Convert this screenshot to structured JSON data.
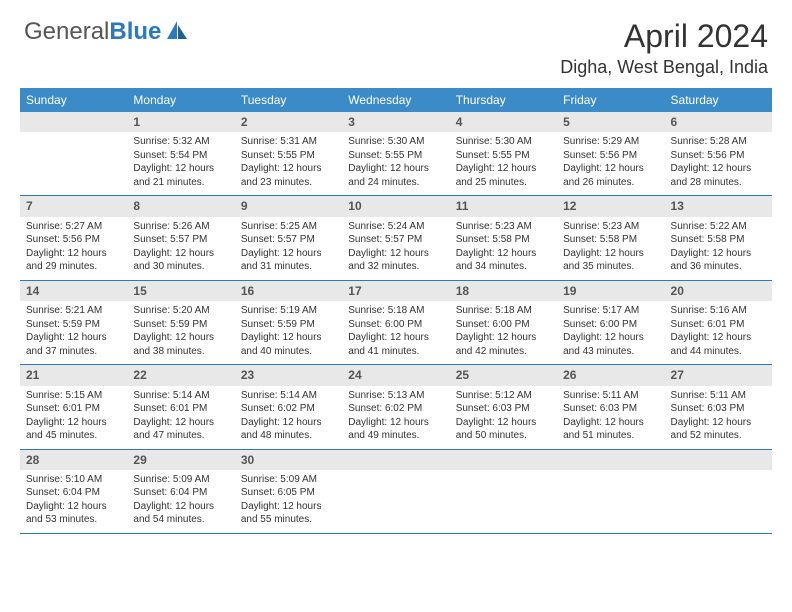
{
  "logo": {
    "text1": "General",
    "text2": "Blue"
  },
  "title": "April 2024",
  "location": "Digha, West Bengal, India",
  "colors": {
    "header_bg": "#3b8bc9",
    "rule": "#2a7abf",
    "daynum_bg": "#e8e8e8",
    "text": "#333333"
  },
  "daysOfWeek": [
    "Sunday",
    "Monday",
    "Tuesday",
    "Wednesday",
    "Thursday",
    "Friday",
    "Saturday"
  ],
  "weeks": [
    [
      {
        "n": "",
        "lines": []
      },
      {
        "n": "1",
        "lines": [
          "Sunrise: 5:32 AM",
          "Sunset: 5:54 PM",
          "Daylight: 12 hours and 21 minutes."
        ]
      },
      {
        "n": "2",
        "lines": [
          "Sunrise: 5:31 AM",
          "Sunset: 5:55 PM",
          "Daylight: 12 hours and 23 minutes."
        ]
      },
      {
        "n": "3",
        "lines": [
          "Sunrise: 5:30 AM",
          "Sunset: 5:55 PM",
          "Daylight: 12 hours and 24 minutes."
        ]
      },
      {
        "n": "4",
        "lines": [
          "Sunrise: 5:30 AM",
          "Sunset: 5:55 PM",
          "Daylight: 12 hours and 25 minutes."
        ]
      },
      {
        "n": "5",
        "lines": [
          "Sunrise: 5:29 AM",
          "Sunset: 5:56 PM",
          "Daylight: 12 hours and 26 minutes."
        ]
      },
      {
        "n": "6",
        "lines": [
          "Sunrise: 5:28 AM",
          "Sunset: 5:56 PM",
          "Daylight: 12 hours and 28 minutes."
        ]
      }
    ],
    [
      {
        "n": "7",
        "lines": [
          "Sunrise: 5:27 AM",
          "Sunset: 5:56 PM",
          "Daylight: 12 hours and 29 minutes."
        ]
      },
      {
        "n": "8",
        "lines": [
          "Sunrise: 5:26 AM",
          "Sunset: 5:57 PM",
          "Daylight: 12 hours and 30 minutes."
        ]
      },
      {
        "n": "9",
        "lines": [
          "Sunrise: 5:25 AM",
          "Sunset: 5:57 PM",
          "Daylight: 12 hours and 31 minutes."
        ]
      },
      {
        "n": "10",
        "lines": [
          "Sunrise: 5:24 AM",
          "Sunset: 5:57 PM",
          "Daylight: 12 hours and 32 minutes."
        ]
      },
      {
        "n": "11",
        "lines": [
          "Sunrise: 5:23 AM",
          "Sunset: 5:58 PM",
          "Daylight: 12 hours and 34 minutes."
        ]
      },
      {
        "n": "12",
        "lines": [
          "Sunrise: 5:23 AM",
          "Sunset: 5:58 PM",
          "Daylight: 12 hours and 35 minutes."
        ]
      },
      {
        "n": "13",
        "lines": [
          "Sunrise: 5:22 AM",
          "Sunset: 5:58 PM",
          "Daylight: 12 hours and 36 minutes."
        ]
      }
    ],
    [
      {
        "n": "14",
        "lines": [
          "Sunrise: 5:21 AM",
          "Sunset: 5:59 PM",
          "Daylight: 12 hours and 37 minutes."
        ]
      },
      {
        "n": "15",
        "lines": [
          "Sunrise: 5:20 AM",
          "Sunset: 5:59 PM",
          "Daylight: 12 hours and 38 minutes."
        ]
      },
      {
        "n": "16",
        "lines": [
          "Sunrise: 5:19 AM",
          "Sunset: 5:59 PM",
          "Daylight: 12 hours and 40 minutes."
        ]
      },
      {
        "n": "17",
        "lines": [
          "Sunrise: 5:18 AM",
          "Sunset: 6:00 PM",
          "Daylight: 12 hours and 41 minutes."
        ]
      },
      {
        "n": "18",
        "lines": [
          "Sunrise: 5:18 AM",
          "Sunset: 6:00 PM",
          "Daylight: 12 hours and 42 minutes."
        ]
      },
      {
        "n": "19",
        "lines": [
          "Sunrise: 5:17 AM",
          "Sunset: 6:00 PM",
          "Daylight: 12 hours and 43 minutes."
        ]
      },
      {
        "n": "20",
        "lines": [
          "Sunrise: 5:16 AM",
          "Sunset: 6:01 PM",
          "Daylight: 12 hours and 44 minutes."
        ]
      }
    ],
    [
      {
        "n": "21",
        "lines": [
          "Sunrise: 5:15 AM",
          "Sunset: 6:01 PM",
          "Daylight: 12 hours and 45 minutes."
        ]
      },
      {
        "n": "22",
        "lines": [
          "Sunrise: 5:14 AM",
          "Sunset: 6:01 PM",
          "Daylight: 12 hours and 47 minutes."
        ]
      },
      {
        "n": "23",
        "lines": [
          "Sunrise: 5:14 AM",
          "Sunset: 6:02 PM",
          "Daylight: 12 hours and 48 minutes."
        ]
      },
      {
        "n": "24",
        "lines": [
          "Sunrise: 5:13 AM",
          "Sunset: 6:02 PM",
          "Daylight: 12 hours and 49 minutes."
        ]
      },
      {
        "n": "25",
        "lines": [
          "Sunrise: 5:12 AM",
          "Sunset: 6:03 PM",
          "Daylight: 12 hours and 50 minutes."
        ]
      },
      {
        "n": "26",
        "lines": [
          "Sunrise: 5:11 AM",
          "Sunset: 6:03 PM",
          "Daylight: 12 hours and 51 minutes."
        ]
      },
      {
        "n": "27",
        "lines": [
          "Sunrise: 5:11 AM",
          "Sunset: 6:03 PM",
          "Daylight: 12 hours and 52 minutes."
        ]
      }
    ],
    [
      {
        "n": "28",
        "lines": [
          "Sunrise: 5:10 AM",
          "Sunset: 6:04 PM",
          "Daylight: 12 hours and 53 minutes."
        ]
      },
      {
        "n": "29",
        "lines": [
          "Sunrise: 5:09 AM",
          "Sunset: 6:04 PM",
          "Daylight: 12 hours and 54 minutes."
        ]
      },
      {
        "n": "30",
        "lines": [
          "Sunrise: 5:09 AM",
          "Sunset: 6:05 PM",
          "Daylight: 12 hours and 55 minutes."
        ]
      },
      {
        "n": "",
        "lines": []
      },
      {
        "n": "",
        "lines": []
      },
      {
        "n": "",
        "lines": []
      },
      {
        "n": "",
        "lines": []
      }
    ]
  ]
}
